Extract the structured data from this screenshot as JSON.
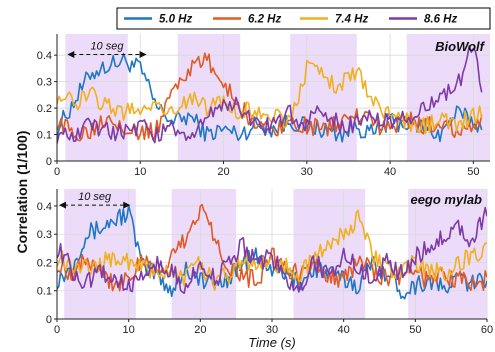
{
  "chart_data": {
    "type": "line",
    "legend": {
      "placement": "top",
      "entries": [
        {
          "name": "5.0 Hz",
          "color": "#1f77c4"
        },
        {
          "name": "6.2 Hz",
          "color": "#e05a26"
        },
        {
          "name": "7.4 Hz",
          "color": "#f0b020"
        },
        {
          "name": "8.6 Hz",
          "color": "#7e3aa8"
        }
      ]
    },
    "ylabel": "Correlation (1/100)",
    "xlabel": "Time (s)",
    "shading_color": "#ecdcf9",
    "panels": [
      {
        "title": "BioWolf",
        "xlim": [
          0,
          52
        ],
        "ylim": [
          0,
          0.48
        ],
        "xticks": [
          "0",
          "10",
          "20",
          "30",
          "40",
          "50"
        ],
        "xtick_values": [
          0,
          10,
          20,
          30,
          40,
          50
        ],
        "yticks": [
          "0",
          "0.1",
          "0.2",
          "0.3",
          "0.4"
        ],
        "ytick_values": [
          0,
          0.1,
          0.2,
          0.3,
          0.4
        ],
        "shaded_intervals": [
          [
            1,
            8.5
          ],
          [
            14.5,
            22
          ],
          [
            28,
            36
          ],
          [
            42,
            52
          ]
        ],
        "annotation": {
          "text": "10 seg",
          "x_start": 1,
          "x_end": 11,
          "y": 0.41
        },
        "series": [
          {
            "name": "5.0 Hz",
            "x": [
              0,
              2,
              4,
              6,
              8,
              10,
              12,
              14,
              16,
              18,
              20,
              22,
              24,
              26,
              28,
              30,
              32,
              34,
              36,
              38,
              40,
              42,
              44,
              46,
              48,
              50,
              51
            ],
            "values": [
              0.12,
              0.22,
              0.33,
              0.36,
              0.38,
              0.35,
              0.2,
              0.15,
              0.17,
              0.1,
              0.12,
              0.1,
              0.14,
              0.12,
              0.15,
              0.13,
              0.12,
              0.1,
              0.13,
              0.1,
              0.15,
              0.14,
              0.13,
              0.1,
              0.18,
              0.15,
              0.12
            ]
          },
          {
            "name": "6.2 Hz",
            "x": [
              0,
              2,
              4,
              6,
              8,
              10,
              12,
              14,
              16,
              18,
              20,
              22,
              24,
              26,
              28,
              30,
              32,
              34,
              36,
              38,
              40,
              42,
              44,
              46,
              48,
              50,
              51
            ],
            "values": [
              0.15,
              0.1,
              0.12,
              0.17,
              0.14,
              0.1,
              0.12,
              0.28,
              0.35,
              0.38,
              0.3,
              0.2,
              0.14,
              0.12,
              0.15,
              0.13,
              0.12,
              0.15,
              0.17,
              0.14,
              0.12,
              0.16,
              0.13,
              0.14,
              0.12,
              0.13,
              0.15
            ]
          },
          {
            "name": "7.4 Hz",
            "x": [
              0,
              2,
              4,
              6,
              8,
              10,
              12,
              14,
              16,
              18,
              20,
              22,
              24,
              26,
              28,
              30,
              32,
              34,
              36,
              38,
              40,
              42,
              44,
              46,
              48,
              50,
              51
            ],
            "values": [
              0.25,
              0.22,
              0.25,
              0.21,
              0.18,
              0.2,
              0.22,
              0.18,
              0.24,
              0.2,
              0.22,
              0.18,
              0.2,
              0.17,
              0.15,
              0.35,
              0.32,
              0.28,
              0.35,
              0.22,
              0.18,
              0.15,
              0.13,
              0.15,
              0.14,
              0.17,
              0.18
            ]
          },
          {
            "name": "8.6 Hz",
            "x": [
              0,
              2,
              4,
              6,
              8,
              10,
              12,
              14,
              16,
              18,
              20,
              22,
              24,
              26,
              28,
              30,
              32,
              34,
              36,
              38,
              40,
              42,
              44,
              46,
              48,
              50,
              51
            ],
            "values": [
              0.1,
              0.08,
              0.14,
              0.12,
              0.1,
              0.13,
              0.1,
              0.12,
              0.1,
              0.15,
              0.23,
              0.2,
              0.14,
              0.13,
              0.18,
              0.14,
              0.2,
              0.13,
              0.15,
              0.18,
              0.14,
              0.16,
              0.2,
              0.24,
              0.28,
              0.44,
              0.25
            ]
          }
        ]
      },
      {
        "title": "eego mylab",
        "xlim": [
          0,
          60
        ],
        "ylim": [
          0,
          0.46
        ],
        "xticks": [
          "0",
          "10",
          "20",
          "30",
          "40",
          "50",
          "60"
        ],
        "xtick_values": [
          0,
          10,
          20,
          30,
          40,
          50,
          60
        ],
        "yticks": [
          "0",
          "0.1",
          "0.2",
          "0.3",
          "0.4"
        ],
        "ytick_values": [
          0,
          0.1,
          0.2,
          0.3,
          0.4
        ],
        "shaded_intervals": [
          [
            1,
            11
          ],
          [
            16,
            25
          ],
          [
            33,
            43
          ],
          [
            49,
            60
          ]
        ],
        "annotation": {
          "text": "10 seg",
          "x_start": 0,
          "x_end": 10.5,
          "y": 0.41
        },
        "series": [
          {
            "name": "5.0 Hz",
            "x": [
              0,
              2,
              4,
              6,
              8,
              10,
              12,
              14,
              16,
              18,
              20,
              22,
              24,
              26,
              28,
              30,
              32,
              34,
              36,
              38,
              40,
              42,
              44,
              46,
              48,
              50,
              52,
              54,
              56,
              58,
              60
            ],
            "values": [
              0.14,
              0.18,
              0.3,
              0.32,
              0.35,
              0.38,
              0.18,
              0.16,
              0.1,
              0.18,
              0.14,
              0.12,
              0.15,
              0.2,
              0.22,
              0.18,
              0.15,
              0.13,
              0.18,
              0.16,
              0.14,
              0.12,
              0.2,
              0.16,
              0.1,
              0.12,
              0.14,
              0.1,
              0.15,
              0.12,
              0.15
            ]
          },
          {
            "name": "6.2 Hz",
            "x": [
              0,
              2,
              4,
              6,
              8,
              10,
              12,
              14,
              16,
              18,
              20,
              22,
              24,
              26,
              28,
              30,
              32,
              34,
              36,
              38,
              40,
              42,
              44,
              46,
              48,
              50,
              52,
              54,
              56,
              58,
              60
            ],
            "values": [
              0.2,
              0.16,
              0.22,
              0.18,
              0.12,
              0.15,
              0.2,
              0.16,
              0.22,
              0.28,
              0.4,
              0.3,
              0.18,
              0.15,
              0.14,
              0.22,
              0.18,
              0.15,
              0.2,
              0.16,
              0.14,
              0.2,
              0.18,
              0.14,
              0.15,
              0.18,
              0.12,
              0.16,
              0.14,
              0.12,
              0.14
            ]
          },
          {
            "name": "7.4 Hz",
            "x": [
              0,
              2,
              4,
              6,
              8,
              10,
              12,
              14,
              16,
              18,
              20,
              22,
              24,
              26,
              28,
              30,
              32,
              34,
              36,
              38,
              40,
              42,
              44,
              46,
              48,
              50,
              52,
              54,
              56,
              58,
              60
            ],
            "values": [
              0.22,
              0.2,
              0.18,
              0.2,
              0.22,
              0.2,
              0.18,
              0.15,
              0.18,
              0.14,
              0.2,
              0.12,
              0.16,
              0.22,
              0.18,
              0.2,
              0.18,
              0.16,
              0.22,
              0.26,
              0.3,
              0.36,
              0.22,
              0.18,
              0.16,
              0.2,
              0.18,
              0.15,
              0.2,
              0.22,
              0.24
            ]
          },
          {
            "name": "8.6 Hz",
            "x": [
              0,
              2,
              4,
              6,
              8,
              10,
              12,
              14,
              16,
              18,
              20,
              22,
              24,
              26,
              28,
              30,
              32,
              34,
              36,
              38,
              40,
              42,
              44,
              46,
              48,
              50,
              52,
              54,
              56,
              58,
              60
            ],
            "values": [
              0.25,
              0.18,
              0.12,
              0.16,
              0.14,
              0.12,
              0.15,
              0.2,
              0.16,
              0.12,
              0.18,
              0.14,
              0.2,
              0.26,
              0.2,
              0.22,
              0.14,
              0.12,
              0.2,
              0.16,
              0.22,
              0.18,
              0.14,
              0.2,
              0.16,
              0.22,
              0.25,
              0.3,
              0.32,
              0.28,
              0.38
            ]
          }
        ]
      }
    ]
  }
}
